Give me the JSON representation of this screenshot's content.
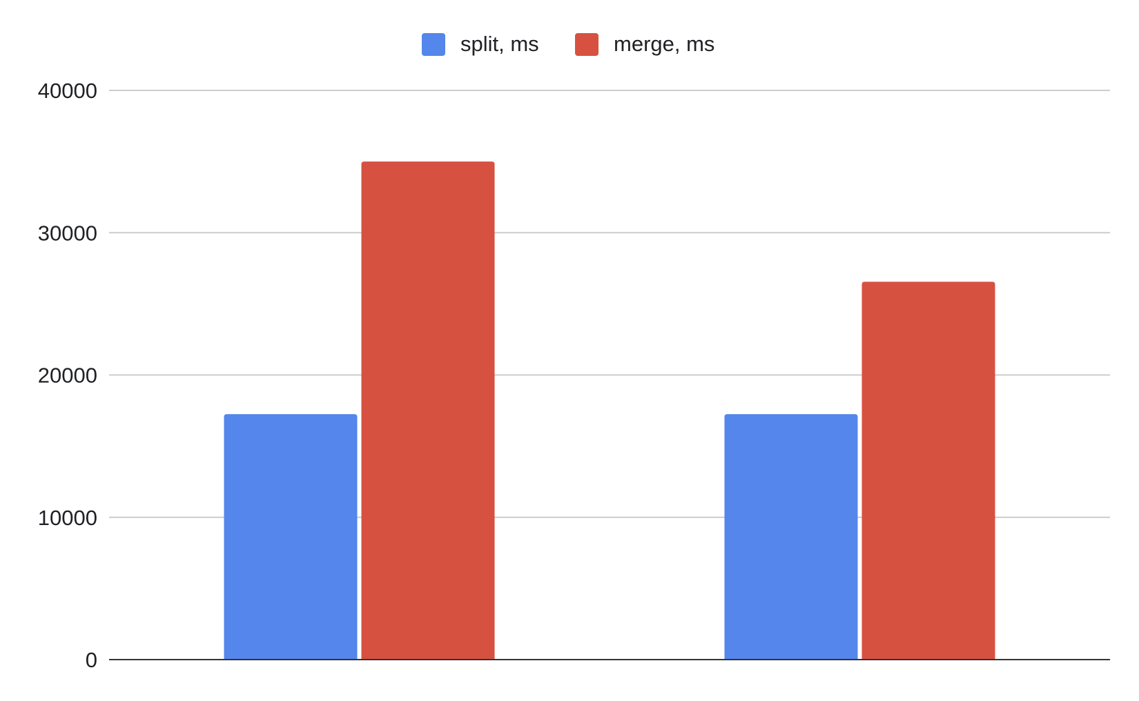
{
  "chart_data": {
    "type": "bar",
    "categories": [
      "",
      ""
    ],
    "series": [
      {
        "name": "split, ms",
        "color": "#5486EB",
        "values": [
          17250,
          17250
        ]
      },
      {
        "name": "merge, ms",
        "color": "#D75141",
        "values": [
          35000,
          26550
        ]
      }
    ],
    "ylim": [
      0,
      40000
    ],
    "yticks": [
      "0",
      "10000",
      "20000",
      "30000",
      "40000"
    ],
    "grid": true,
    "legend_position": "top-center",
    "title": "",
    "xlabel": "",
    "ylabel": ""
  }
}
